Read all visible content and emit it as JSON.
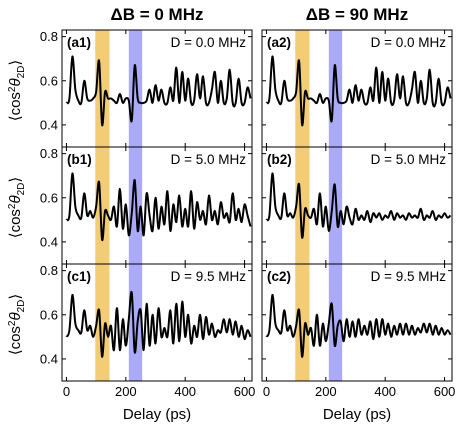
{
  "figure": {
    "columns": [
      {
        "title": "ΔB = 0 MHz"
      },
      {
        "title": "ΔB = 90 MHz"
      }
    ],
    "xlabel": "Delay (ps)",
    "ylabel_parts": {
      "pre": "⟨cos",
      "sup": "2",
      "theta": "θ",
      "sub": "2D",
      "post": "⟩"
    }
  },
  "colors": {
    "curve": "#000000",
    "highlight_orange": "#f3cd76",
    "highlight_blue": "#aaaaf8"
  },
  "chart_data": {
    "type": "line",
    "layout": "3x2 grid of panels, shared axes",
    "xlim": [
      -15,
      625
    ],
    "ylim": [
      0.3,
      0.83
    ],
    "xticks": [
      0,
      200,
      400,
      600
    ],
    "yticks": [
      0.4,
      0.6,
      0.8
    ],
    "xtick_labels": [
      "0",
      "200",
      "400",
      "600"
    ],
    "ytick_labels": [
      "0.4",
      "0.6",
      "0.8"
    ],
    "shaded_bands": [
      {
        "color": "orange",
        "x": [
          97,
          145
        ]
      },
      {
        "color": "blue",
        "x": [
          210,
          255
        ]
      }
    ],
    "panels": [
      {
        "label": "(a1)",
        "D": "D = 0.0 MHz",
        "col": 0,
        "row": 0,
        "x": [
          0,
          10,
          20,
          30,
          40,
          50,
          60,
          70,
          80,
          90,
          100,
          110,
          120,
          130,
          140,
          150,
          160,
          170,
          180,
          190,
          200,
          210,
          220,
          230,
          240,
          250,
          260,
          270,
          280,
          290,
          300,
          310,
          320,
          330,
          340,
          350,
          360,
          370,
          380,
          390,
          400,
          410,
          420,
          430,
          440,
          450,
          460,
          470,
          480,
          490,
          500,
          510,
          520,
          530,
          540,
          550,
          560,
          570,
          580,
          590,
          600,
          610,
          620
        ],
        "y": [
          0.5,
          0.52,
          0.71,
          0.56,
          0.51,
          0.5,
          0.6,
          0.52,
          0.51,
          0.52,
          0.55,
          0.69,
          0.4,
          0.55,
          0.52,
          0.52,
          0.51,
          0.5,
          0.54,
          0.5,
          0.52,
          0.51,
          0.42,
          0.67,
          0.52,
          0.5,
          0.5,
          0.51,
          0.56,
          0.5,
          0.58,
          0.51,
          0.56,
          0.5,
          0.5,
          0.57,
          0.51,
          0.66,
          0.5,
          0.64,
          0.51,
          0.61,
          0.5,
          0.51,
          0.63,
          0.52,
          0.62,
          0.5,
          0.5,
          0.56,
          0.64,
          0.5,
          0.6,
          0.5,
          0.52,
          0.65,
          0.5,
          0.5,
          0.61,
          0.5,
          0.5,
          0.57,
          0.52
        ]
      },
      {
        "label": "(a2)",
        "D": "D = 0.0 MHz",
        "col": 1,
        "row": 0,
        "x": [
          0,
          10,
          20,
          30,
          40,
          50,
          60,
          70,
          80,
          90,
          100,
          110,
          120,
          130,
          140,
          150,
          160,
          170,
          180,
          190,
          200,
          210,
          220,
          230,
          240,
          250,
          260,
          270,
          280,
          290,
          300,
          310,
          320,
          330,
          340,
          350,
          360,
          370,
          380,
          390,
          400,
          410,
          420,
          430,
          440,
          450,
          460,
          470,
          480,
          490,
          500,
          510,
          520,
          530,
          540,
          550,
          560,
          570,
          580,
          590,
          600,
          610,
          620
        ],
        "y": [
          0.5,
          0.52,
          0.71,
          0.56,
          0.51,
          0.5,
          0.6,
          0.52,
          0.51,
          0.52,
          0.55,
          0.69,
          0.4,
          0.55,
          0.52,
          0.52,
          0.51,
          0.5,
          0.54,
          0.5,
          0.52,
          0.51,
          0.42,
          0.67,
          0.52,
          0.5,
          0.5,
          0.51,
          0.56,
          0.5,
          0.58,
          0.51,
          0.56,
          0.5,
          0.5,
          0.57,
          0.51,
          0.66,
          0.5,
          0.64,
          0.51,
          0.61,
          0.5,
          0.51,
          0.63,
          0.52,
          0.62,
          0.5,
          0.5,
          0.56,
          0.64,
          0.5,
          0.6,
          0.5,
          0.52,
          0.65,
          0.5,
          0.5,
          0.61,
          0.5,
          0.5,
          0.57,
          0.52
        ]
      },
      {
        "label": "(b1)",
        "D": "D = 5.0 MHz",
        "col": 0,
        "row": 1,
        "x": [
          0,
          10,
          20,
          30,
          40,
          50,
          60,
          70,
          80,
          90,
          100,
          110,
          120,
          130,
          140,
          150,
          160,
          170,
          180,
          190,
          200,
          210,
          220,
          230,
          240,
          250,
          260,
          270,
          280,
          290,
          300,
          310,
          320,
          330,
          340,
          350,
          360,
          370,
          380,
          390,
          400,
          410,
          420,
          430,
          440,
          450,
          460,
          470,
          480,
          490,
          500,
          510,
          520,
          530,
          540,
          550,
          560,
          570,
          580,
          590,
          600,
          610,
          620
        ],
        "y": [
          0.5,
          0.52,
          0.71,
          0.56,
          0.52,
          0.51,
          0.62,
          0.52,
          0.54,
          0.51,
          0.56,
          0.67,
          0.41,
          0.54,
          0.52,
          0.5,
          0.56,
          0.47,
          0.64,
          0.46,
          0.57,
          0.43,
          0.53,
          0.68,
          0.45,
          0.56,
          0.43,
          0.62,
          0.52,
          0.45,
          0.6,
          0.46,
          0.56,
          0.48,
          0.63,
          0.45,
          0.57,
          0.49,
          0.61,
          0.47,
          0.55,
          0.47,
          0.63,
          0.46,
          0.58,
          0.5,
          0.54,
          0.48,
          0.61,
          0.5,
          0.54,
          0.48,
          0.58,
          0.51,
          0.53,
          0.49,
          0.62,
          0.5,
          0.55,
          0.49,
          0.57,
          0.52,
          0.47
        ]
      },
      {
        "label": "(b2)",
        "D": "D = 5.0 MHz",
        "col": 1,
        "row": 1,
        "x": [
          0,
          10,
          20,
          30,
          40,
          50,
          60,
          70,
          80,
          90,
          100,
          110,
          120,
          130,
          140,
          150,
          160,
          170,
          180,
          190,
          200,
          210,
          220,
          230,
          240,
          250,
          260,
          270,
          280,
          290,
          300,
          310,
          320,
          330,
          340,
          350,
          360,
          370,
          380,
          390,
          400,
          410,
          420,
          430,
          440,
          450,
          460,
          470,
          480,
          490,
          500,
          510,
          520,
          530,
          540,
          550,
          560,
          570,
          580,
          590,
          600,
          610,
          620
        ],
        "y": [
          0.5,
          0.52,
          0.71,
          0.56,
          0.52,
          0.51,
          0.62,
          0.52,
          0.53,
          0.51,
          0.56,
          0.66,
          0.42,
          0.55,
          0.52,
          0.51,
          0.55,
          0.48,
          0.62,
          0.47,
          0.56,
          0.45,
          0.54,
          0.66,
          0.47,
          0.54,
          0.48,
          0.56,
          0.51,
          0.48,
          0.55,
          0.5,
          0.52,
          0.5,
          0.54,
          0.49,
          0.53,
          0.51,
          0.53,
          0.5,
          0.52,
          0.51,
          0.54,
          0.5,
          0.53,
          0.51,
          0.52,
          0.5,
          0.53,
          0.51,
          0.52,
          0.51,
          0.55,
          0.5,
          0.52,
          0.51,
          0.54,
          0.5,
          0.52,
          0.51,
          0.53,
          0.51,
          0.52
        ]
      },
      {
        "label": "(c1)",
        "D": "D = 9.5 MHz",
        "col": 0,
        "row": 2,
        "x": [
          0,
          10,
          20,
          30,
          40,
          50,
          60,
          70,
          80,
          90,
          100,
          110,
          120,
          130,
          140,
          150,
          160,
          170,
          180,
          190,
          200,
          210,
          220,
          230,
          240,
          250,
          260,
          270,
          280,
          290,
          300,
          310,
          320,
          330,
          340,
          350,
          360,
          370,
          380,
          390,
          400,
          410,
          420,
          430,
          440,
          450,
          460,
          470,
          480,
          490,
          500,
          510,
          520,
          530,
          540,
          550,
          560,
          570,
          580,
          590,
          600,
          610,
          620
        ],
        "y": [
          0.5,
          0.53,
          0.69,
          0.56,
          0.53,
          0.52,
          0.62,
          0.53,
          0.55,
          0.5,
          0.55,
          0.62,
          0.41,
          0.56,
          0.5,
          0.55,
          0.44,
          0.63,
          0.44,
          0.58,
          0.46,
          0.58,
          0.7,
          0.43,
          0.57,
          0.62,
          0.44,
          0.65,
          0.46,
          0.6,
          0.47,
          0.63,
          0.5,
          0.54,
          0.5,
          0.62,
          0.47,
          0.65,
          0.48,
          0.66,
          0.5,
          0.6,
          0.47,
          0.55,
          0.5,
          0.6,
          0.49,
          0.59,
          0.51,
          0.56,
          0.5,
          0.53,
          0.52,
          0.58,
          0.52,
          0.58,
          0.51,
          0.57,
          0.5,
          0.55,
          0.49,
          0.53,
          0.5
        ]
      },
      {
        "label": "(c2)",
        "D": "D = 9.5 MHz",
        "col": 1,
        "row": 2,
        "x": [
          0,
          10,
          20,
          30,
          40,
          50,
          60,
          70,
          80,
          90,
          100,
          110,
          120,
          130,
          140,
          150,
          160,
          170,
          180,
          190,
          200,
          210,
          220,
          230,
          240,
          250,
          260,
          270,
          280,
          290,
          300,
          310,
          320,
          330,
          340,
          350,
          360,
          370,
          380,
          390,
          400,
          410,
          420,
          430,
          440,
          450,
          460,
          470,
          480,
          490,
          500,
          510,
          520,
          530,
          540,
          550,
          560,
          570,
          580,
          590,
          600,
          610,
          620
        ],
        "y": [
          0.5,
          0.53,
          0.69,
          0.56,
          0.53,
          0.52,
          0.62,
          0.53,
          0.55,
          0.5,
          0.55,
          0.62,
          0.41,
          0.56,
          0.51,
          0.54,
          0.46,
          0.6,
          0.46,
          0.56,
          0.48,
          0.56,
          0.65,
          0.46,
          0.55,
          0.57,
          0.48,
          0.58,
          0.5,
          0.57,
          0.5,
          0.58,
          0.51,
          0.55,
          0.51,
          0.57,
          0.49,
          0.58,
          0.5,
          0.58,
          0.51,
          0.56,
          0.5,
          0.55,
          0.51,
          0.56,
          0.51,
          0.56,
          0.51,
          0.55,
          0.51,
          0.54,
          0.52,
          0.56,
          0.52,
          0.56,
          0.51,
          0.55,
          0.51,
          0.54,
          0.51,
          0.53,
          0.51
        ]
      }
    ]
  }
}
